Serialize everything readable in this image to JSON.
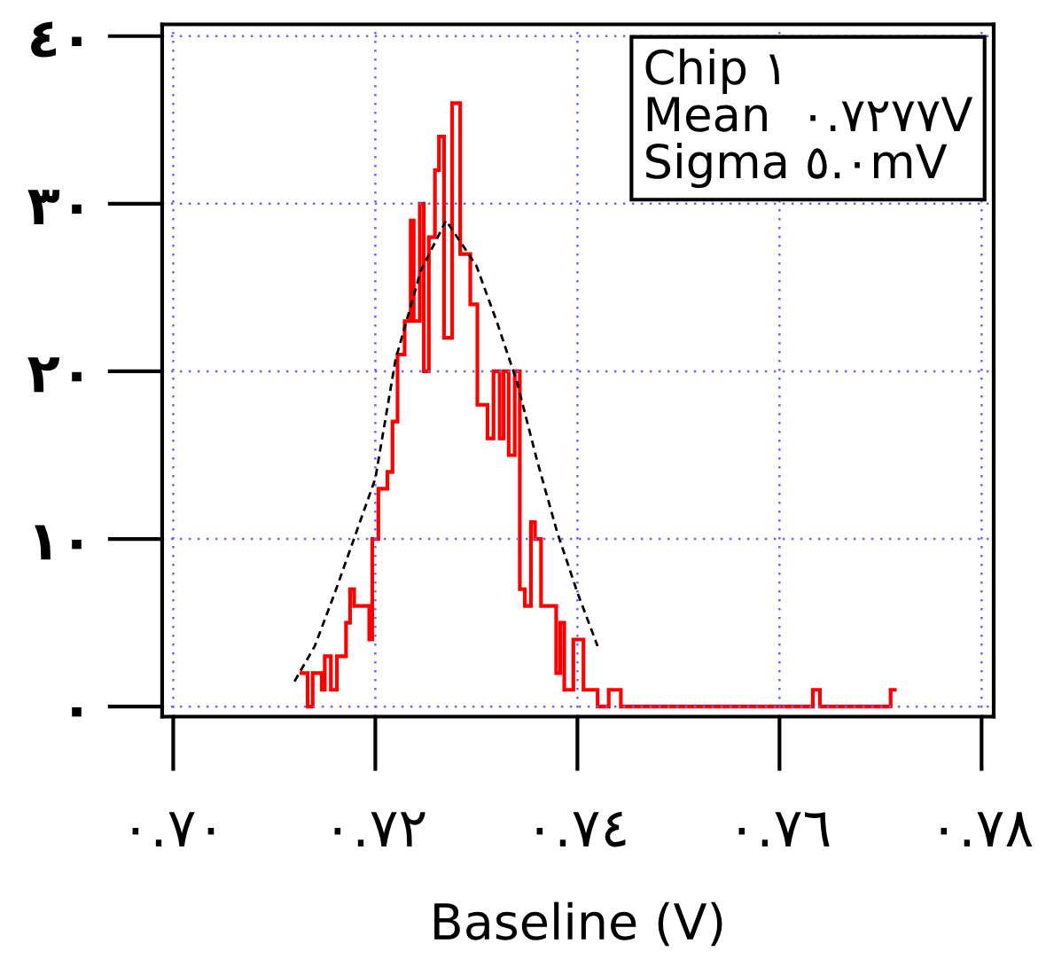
{
  "chart_data": {
    "type": "histogram",
    "xlabel": "Baseline (V)",
    "bins": [
      0.7125,
      0.7133,
      0.7138,
      0.7147,
      0.715,
      0.7156,
      0.7162,
      0.7171,
      0.7175,
      0.7179,
      0.7194,
      0.7197,
      0.7203,
      0.7212,
      0.7217,
      0.7222,
      0.7229,
      0.7235,
      0.7238,
      0.7244,
      0.7248,
      0.7253,
      0.7259,
      0.7263,
      0.7268,
      0.7276,
      0.7284,
      0.7288,
      0.7294,
      0.7301,
      0.7311,
      0.7317,
      0.7323,
      0.7327,
      0.7332,
      0.7338,
      0.7343,
      0.7348,
      0.7354,
      0.7358,
      0.7364,
      0.7379,
      0.7383,
      0.7387,
      0.7396,
      0.7406,
      0.742,
      0.7431,
      0.7443,
      0.7633,
      0.764,
      0.771,
      0.7716
    ],
    "values": [
      2,
      0,
      2,
      1,
      3,
      1,
      3,
      5,
      7,
      6,
      4,
      10,
      13,
      14,
      17,
      21,
      23,
      29,
      23,
      30,
      20,
      28,
      32,
      34,
      22,
      36,
      27,
      27,
      24,
      18,
      16,
      20,
      16,
      20,
      15,
      20,
      7,
      6,
      11,
      10,
      6,
      2,
      5,
      1,
      4,
      1,
      0,
      1,
      0,
      1,
      0,
      1
    ],
    "color": "#ff0000",
    "series": [
      {
        "type": "line",
        "color": "#000000",
        "line_style": "dashed",
        "x": [
          0.712,
          0.714,
          0.716,
          0.72,
          0.722,
          0.7245,
          0.727,
          0.73,
          0.732,
          0.734,
          0.736,
          0.738,
          0.74,
          0.742
        ],
        "values": [
          1.5,
          3.6,
          6.8,
          13.6,
          20.7,
          26,
          29,
          26.3,
          23,
          19.4,
          14.7,
          10.4,
          6.8,
          3.6
        ]
      }
    ],
    "annotations": [
      "Chip ١",
      "Mean  ٠.٧٢٧٧V",
      "Sigma ٥.٠mV"
    ],
    "xlim": [
      0.6989,
      0.7812
    ],
    "ylim": [
      -0.6,
      40.7
    ],
    "xticks": [
      {
        "value": 0.7,
        "label": "٠.٧٠"
      },
      {
        "value": 0.72,
        "label": "٠.٧٢"
      },
      {
        "value": 0.74,
        "label": "٠.٧٤"
      },
      {
        "value": 0.76,
        "label": "٠.٧٦"
      },
      {
        "value": 0.78,
        "label": "٠.٧٨"
      }
    ],
    "yticks": [
      {
        "value": 0,
        "label": "٠"
      },
      {
        "value": 10,
        "label": "١٠"
      },
      {
        "value": 20,
        "label": "٢٠"
      },
      {
        "value": 30,
        "label": "٣٠"
      },
      {
        "value": 40,
        "label": "٤٠"
      }
    ],
    "grid": true,
    "legend": false
  }
}
